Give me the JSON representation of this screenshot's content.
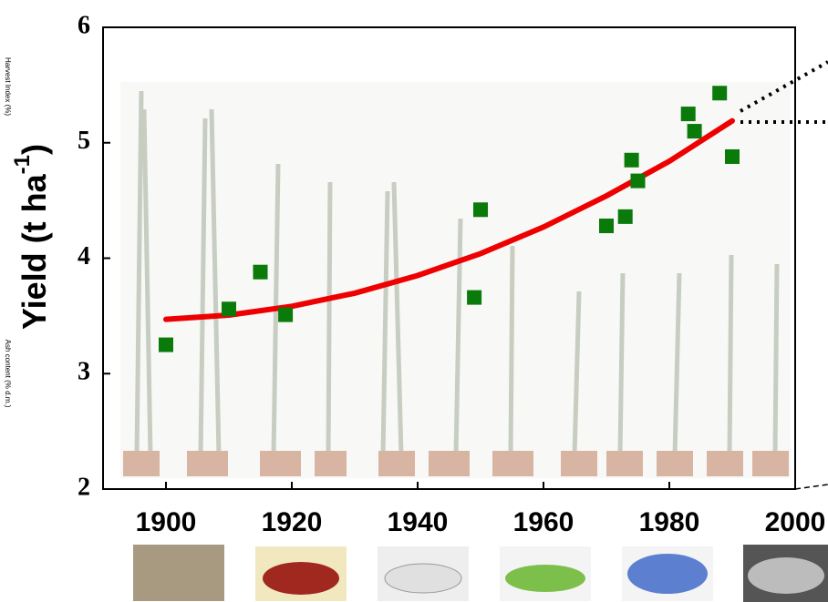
{
  "chart_data": {
    "type": "scatter",
    "y_label": "Yield (t ha",
    "y_label_sup": "-1",
    "y_label_end": ")",
    "side_labels": [
      "Harvest Index (%)",
      "Ash content (% d.m.)"
    ],
    "xlim": [
      1890,
      2000
    ],
    "xticks": [
      1900,
      1920,
      1940,
      1960,
      1980,
      2000
    ],
    "ylim": [
      2,
      6
    ],
    "yticks": [
      2,
      3,
      4,
      5,
      6
    ],
    "points": {
      "color": "#0a7a0a",
      "x": [
        1900,
        1910,
        1915,
        1919,
        1949,
        1950,
        1970,
        1973,
        1974,
        1975,
        1983,
        1984,
        1988,
        1990
      ],
      "y": [
        3.25,
        3.56,
        3.88,
        3.51,
        3.66,
        4.42,
        4.28,
        4.36,
        4.85,
        4.67,
        5.25,
        5.1,
        5.43,
        4.88
      ]
    },
    "trend": {
      "color": "#ee0000",
      "x": [
        1900,
        1910,
        1920,
        1930,
        1940,
        1950,
        1960,
        1970,
        1980,
        1990
      ],
      "y": [
        3.47,
        3.507,
        3.583,
        3.697,
        3.85,
        4.04,
        4.27,
        4.54,
        4.84,
        5.19
      ]
    }
  }
}
